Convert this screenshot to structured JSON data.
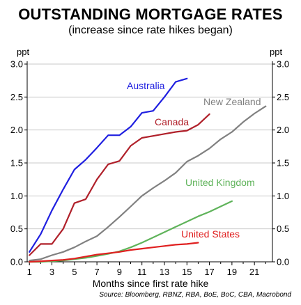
{
  "chart_data": {
    "type": "line",
    "title": "OUTSTANDING MORTGAGE RATES",
    "subtitle": "(increase since rate hikes began)",
    "xlabel": "Months since first rate hike",
    "ylabel_left": "ppt",
    "ylabel_right": "ppt",
    "source": "Source: Bloomberg, RBNZ, RBA, BoE, BoC, CBA, Macrobond",
    "xlim": [
      0.8,
      22.6
    ],
    "ylim": [
      0,
      3.0
    ],
    "x_ticks": [
      1,
      3,
      5,
      7,
      9,
      11,
      13,
      15,
      17,
      19,
      21
    ],
    "y_ticks": [
      0.0,
      0.5,
      1.0,
      1.5,
      2.0,
      2.5,
      3.0
    ],
    "y_tick_labels": [
      "0.0",
      "0.5",
      "1.0",
      "1.5",
      "2.0",
      "2.5",
      "3.0"
    ],
    "grid": "horizontal",
    "series": [
      {
        "name": "Australia",
        "color": "#1f1fe0",
        "x": [
          1,
          2,
          3,
          4,
          5,
          6,
          7,
          8,
          9,
          10,
          11,
          12,
          13,
          14,
          15
        ],
        "values": [
          0.15,
          0.42,
          0.78,
          1.1,
          1.4,
          1.55,
          1.73,
          1.92,
          1.92,
          2.05,
          2.26,
          2.29,
          2.5,
          2.73,
          2.78
        ]
      },
      {
        "name": "Canada",
        "color": "#b0202a",
        "x": [
          1,
          2,
          3,
          4,
          5,
          6,
          7,
          8,
          9,
          10,
          11,
          12,
          13,
          14,
          15,
          16,
          17
        ],
        "values": [
          0.1,
          0.27,
          0.27,
          0.5,
          0.89,
          0.95,
          1.25,
          1.48,
          1.53,
          1.76,
          1.88,
          1.91,
          1.94,
          1.97,
          1.99,
          2.08,
          2.24
        ]
      },
      {
        "name": "New Zealand",
        "color": "#808080",
        "x": [
          1,
          2,
          3,
          4,
          5,
          6,
          7,
          8,
          9,
          10,
          11,
          12,
          13,
          14,
          15,
          16,
          17,
          18,
          19,
          20,
          21,
          22
        ],
        "values": [
          0.02,
          0.04,
          0.1,
          0.15,
          0.22,
          0.31,
          0.39,
          0.53,
          0.68,
          0.84,
          1.0,
          1.12,
          1.23,
          1.35,
          1.52,
          1.61,
          1.72,
          1.86,
          1.97,
          2.12,
          2.25,
          2.36
        ]
      },
      {
        "name": "United Kingdom",
        "color": "#5fb35a",
        "x": [
          1,
          2,
          3,
          4,
          5,
          6,
          7,
          8,
          9,
          10,
          11,
          12,
          13,
          14,
          15,
          16,
          17,
          18,
          19
        ],
        "values": [
          0.0,
          0.0,
          0.01,
          0.02,
          0.04,
          0.06,
          0.09,
          0.12,
          0.16,
          0.22,
          0.29,
          0.37,
          0.45,
          0.53,
          0.61,
          0.69,
          0.76,
          0.84,
          0.92
        ]
      },
      {
        "name": "United States",
        "color": "#e02020",
        "x": [
          1,
          2,
          3,
          4,
          5,
          6,
          7,
          8,
          9,
          10,
          11,
          12,
          13,
          14,
          15,
          16
        ],
        "values": [
          0.0,
          0.01,
          0.02,
          0.03,
          0.05,
          0.08,
          0.11,
          0.13,
          0.15,
          0.18,
          0.2,
          0.22,
          0.24,
          0.26,
          0.27,
          0.29
        ]
      }
    ]
  }
}
